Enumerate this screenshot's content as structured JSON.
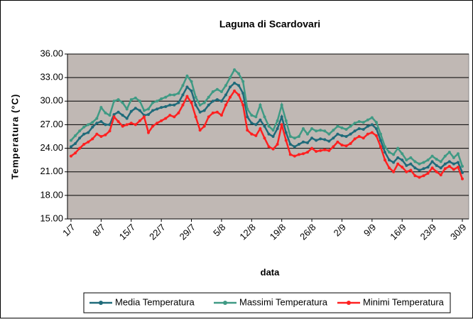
{
  "chart_data": {
    "type": "line",
    "title": "Laguna di Scardovari",
    "x_label": "data",
    "y_label": "Temperatura (°C)",
    "categories": [
      "1/7",
      null,
      null,
      null,
      null,
      null,
      null,
      "8/7",
      null,
      null,
      null,
      null,
      null,
      null,
      "15/7",
      null,
      null,
      null,
      null,
      null,
      null,
      "22/7",
      null,
      null,
      null,
      null,
      null,
      null,
      "29/7",
      null,
      null,
      null,
      null,
      null,
      null,
      "5/8",
      null,
      null,
      null,
      null,
      null,
      null,
      "12/8",
      null,
      null,
      null,
      null,
      null,
      null,
      "19/8",
      null,
      null,
      null,
      null,
      null,
      null,
      "26/8",
      null,
      null,
      null,
      null,
      null,
      null,
      "2/9",
      null,
      null,
      null,
      null,
      null,
      null,
      "9/9",
      null,
      null,
      null,
      null,
      null,
      null,
      "16/9",
      null,
      null,
      null,
      null,
      null,
      null,
      "23/9",
      null,
      null,
      null,
      null,
      null,
      null,
      "30/9"
    ],
    "series": [
      {
        "name": "Media Temperatura",
        "color": "#1f6b7a",
        "values": [
          24.2,
          24.6,
          25.3,
          25.8,
          26.0,
          26.7,
          27.2,
          27.4,
          27.0,
          27.0,
          28.3,
          28.6,
          28.2,
          27.8,
          28.7,
          29.1,
          28.8,
          28.2,
          28.3,
          28.8,
          29.0,
          29.2,
          29.3,
          29.5,
          29.5,
          29.8,
          30.8,
          31.8,
          31.3,
          29.5,
          28.6,
          28.8,
          29.5,
          30.0,
          30.2,
          30.0,
          30.8,
          31.8,
          32.3,
          32.0,
          31.0,
          28.0,
          27.2,
          27.0,
          27.6,
          26.8,
          25.8,
          25.5,
          26.5,
          28.0,
          26.0,
          24.5,
          24.2,
          24.5,
          24.8,
          24.7,
          25.3,
          25.0,
          25.2,
          25.1,
          24.9,
          25.3,
          25.8,
          25.6,
          25.5,
          25.8,
          26.2,
          26.5,
          26.4,
          26.8,
          27.0,
          26.5,
          25.0,
          23.5,
          22.5,
          22.2,
          22.8,
          22.5,
          21.8,
          22.0,
          21.5,
          21.2,
          21.4,
          21.6,
          22.3,
          21.8,
          21.5,
          22.0,
          22.3,
          22.0,
          22.2,
          20.9
        ]
      },
      {
        "name": "Massimi Temperatura",
        "color": "#3f9a84",
        "values": [
          25.0,
          25.6,
          26.2,
          26.7,
          27.0,
          27.3,
          27.8,
          29.2,
          28.5,
          28.2,
          30.0,
          30.2,
          29.8,
          29.0,
          30.2,
          30.4,
          30.0,
          28.8,
          29.0,
          29.8,
          30.0,
          30.3,
          30.5,
          30.8,
          30.8,
          31.0,
          32.0,
          33.2,
          32.5,
          30.5,
          29.5,
          29.8,
          30.5,
          31.2,
          31.5,
          31.2,
          32.0,
          33.0,
          34.0,
          33.5,
          32.5,
          29.0,
          28.2,
          28.0,
          29.5,
          28.0,
          26.8,
          26.3,
          27.5,
          29.5,
          27.5,
          25.5,
          25.3,
          25.5,
          26.5,
          25.8,
          26.5,
          26.2,
          26.3,
          26.2,
          25.8,
          26.3,
          26.8,
          26.6,
          26.4,
          26.8,
          27.2,
          27.4,
          27.3,
          27.6,
          27.9,
          27.3,
          25.8,
          24.2,
          23.5,
          23.2,
          24.0,
          23.3,
          22.5,
          22.8,
          22.3,
          22.0,
          22.2,
          22.5,
          23.0,
          22.6,
          22.3,
          23.0,
          23.5,
          22.8,
          23.3,
          21.7
        ]
      },
      {
        "name": "Minimi Temperatura",
        "color": "#ff2020",
        "values": [
          23.0,
          23.4,
          24.0,
          24.5,
          24.8,
          25.2,
          25.8,
          25.5,
          25.7,
          26.2,
          28.0,
          27.4,
          26.8,
          27.0,
          27.2,
          27.0,
          27.5,
          28.0,
          26.0,
          26.8,
          27.2,
          27.5,
          27.8,
          28.2,
          28.0,
          28.5,
          29.5,
          30.6,
          29.8,
          28.0,
          26.3,
          26.8,
          28.0,
          28.5,
          28.6,
          28.2,
          29.5,
          30.5,
          31.3,
          30.8,
          29.5,
          26.3,
          25.8,
          25.6,
          26.5,
          25.3,
          24.2,
          23.9,
          24.5,
          27.0,
          25.0,
          23.2,
          23.0,
          23.2,
          23.3,
          23.5,
          24.0,
          23.6,
          23.7,
          23.8,
          23.7,
          24.2,
          24.8,
          24.4,
          24.3,
          24.6,
          25.2,
          25.5,
          25.3,
          25.8,
          26.0,
          25.6,
          24.2,
          22.5,
          21.5,
          21.0,
          22.0,
          21.6,
          21.0,
          21.2,
          20.5,
          20.3,
          20.5,
          20.8,
          21.5,
          21.0,
          20.6,
          21.4,
          21.7,
          21.3,
          21.6,
          20.1
        ]
      }
    ],
    "ylim": [
      15,
      36
    ],
    "yticks": [
      {
        "value": 15,
        "label": "15.00"
      },
      {
        "value": 18,
        "label": "18.00"
      },
      {
        "value": 21,
        "label": "21.00"
      },
      {
        "value": 24,
        "label": "24.00"
      },
      {
        "value": 27,
        "label": "27.00"
      },
      {
        "value": 30,
        "label": "30.00"
      },
      {
        "value": 33,
        "label": "33.00"
      },
      {
        "value": 36,
        "label": "36.00"
      }
    ],
    "grid": true,
    "plot_background": "#c0b8b4",
    "legend_position": "bottom"
  }
}
